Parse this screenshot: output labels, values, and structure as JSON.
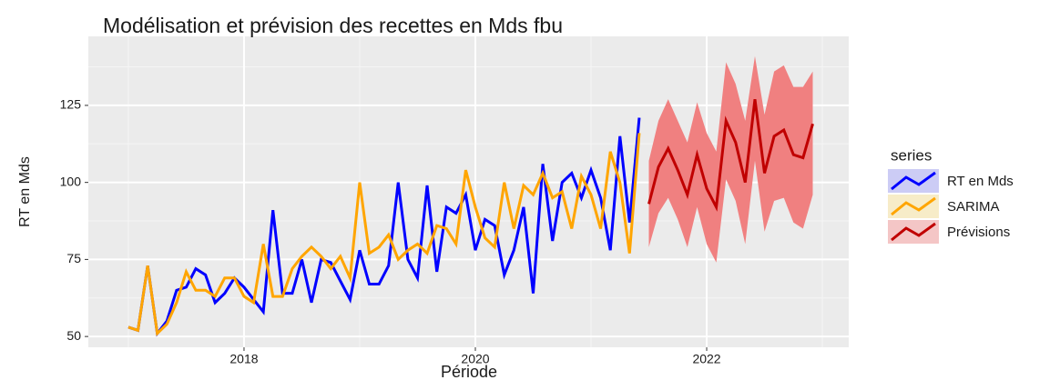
{
  "chart_data": {
    "type": "line",
    "title": "Modélisation et prévision des recettes en Mds fbu",
    "x_label": "Période",
    "y_label": "RT en Mds",
    "legend_title": "series",
    "legend_position": "right",
    "xlim": [
      2016.654,
      2023.228
    ],
    "ylim": [
      46.5,
      147.4
    ],
    "xticks": [
      2018,
      2020,
      2022
    ],
    "yticks": [
      50,
      75,
      100,
      125
    ],
    "grid": true,
    "minor_grid": true,
    "series": [
      {
        "name": "RT en Mds",
        "color": "#0000ff",
        "key_fill": "#ccccf5",
        "x": [
          2017,
          2017.083,
          2017.167,
          2017.25,
          2017.333,
          2017.417,
          2017.5,
          2017.583,
          2017.667,
          2017.75,
          2017.833,
          2017.917,
          2018,
          2018.083,
          2018.167,
          2018.25,
          2018.333,
          2018.417,
          2018.5,
          2018.583,
          2018.667,
          2018.75,
          2018.833,
          2018.917,
          2019,
          2019.083,
          2019.167,
          2019.25,
          2019.333,
          2019.417,
          2019.5,
          2019.583,
          2019.667,
          2019.75,
          2019.833,
          2019.917,
          2020,
          2020.083,
          2020.167,
          2020.25,
          2020.333,
          2020.417,
          2020.5,
          2020.583,
          2020.667,
          2020.75,
          2020.833,
          2020.917,
          2021,
          2021.083,
          2021.167,
          2021.25,
          2021.333,
          2021.417
        ],
        "values": [
          53,
          52,
          73,
          51,
          55,
          65,
          66,
          72,
          70,
          61,
          64,
          69,
          66,
          62,
          58,
          91,
          64,
          64,
          75,
          61,
          75,
          74,
          68,
          62,
          78,
          67,
          67,
          73,
          100,
          75,
          69,
          99,
          71,
          92,
          90,
          96,
          78,
          88,
          86,
          70,
          78,
          92,
          64,
          106,
          81,
          100,
          103,
          95,
          104,
          95,
          78,
          115,
          87,
          121
        ]
      },
      {
        "name": "SARIMA",
        "color": "#ffa500",
        "key_fill": "#f7ecc8",
        "x": [
          2017,
          2017.083,
          2017.167,
          2017.25,
          2017.333,
          2017.417,
          2017.5,
          2017.583,
          2017.667,
          2017.75,
          2017.833,
          2017.917,
          2018,
          2018.083,
          2018.167,
          2018.25,
          2018.333,
          2018.417,
          2018.5,
          2018.583,
          2018.667,
          2018.75,
          2018.833,
          2018.917,
          2019,
          2019.083,
          2019.167,
          2019.25,
          2019.333,
          2019.417,
          2019.5,
          2019.583,
          2019.667,
          2019.75,
          2019.833,
          2019.917,
          2020,
          2020.083,
          2020.167,
          2020.25,
          2020.333,
          2020.417,
          2020.5,
          2020.583,
          2020.667,
          2020.75,
          2020.833,
          2020.917,
          2021,
          2021.083,
          2021.167,
          2021.25,
          2021.333,
          2021.417
        ],
        "values": [
          53,
          52,
          73,
          51,
          54,
          61,
          71,
          65,
          65,
          63,
          69,
          69,
          63,
          61,
          80,
          63,
          63,
          72,
          76,
          79,
          76,
          72,
          76,
          69,
          100,
          77,
          79,
          83,
          75,
          78,
          80,
          77,
          86,
          85,
          80,
          104,
          92,
          82,
          79,
          100,
          85,
          99,
          96,
          103,
          95,
          97,
          85,
          102,
          96,
          85,
          110,
          100,
          77,
          116
        ]
      },
      {
        "name": "Prévisions",
        "color": "#c00000",
        "key_fill": "#f4c6c6",
        "band_color": "#f08080",
        "x": [
          2021.5,
          2021.583,
          2021.667,
          2021.75,
          2021.833,
          2021.917,
          2022,
          2022.083,
          2022.167,
          2022.25,
          2022.333,
          2022.417,
          2022.5,
          2022.583,
          2022.667,
          2022.75,
          2022.833,
          2022.917
        ],
        "values": [
          93,
          105,
          111,
          104,
          96,
          109,
          98,
          92,
          120,
          113,
          100,
          127,
          103,
          115,
          117,
          109,
          108,
          119
        ],
        "lower": [
          79,
          90,
          95,
          88,
          79,
          92,
          80,
          74,
          101,
          94,
          80,
          107,
          84,
          94,
          95,
          87,
          85,
          96
        ],
        "upper": [
          107,
          120,
          127,
          120,
          113,
          126,
          116,
          110,
          139,
          132,
          120,
          141,
          122,
          136,
          138,
          131,
          131,
          136
        ]
      }
    ]
  }
}
